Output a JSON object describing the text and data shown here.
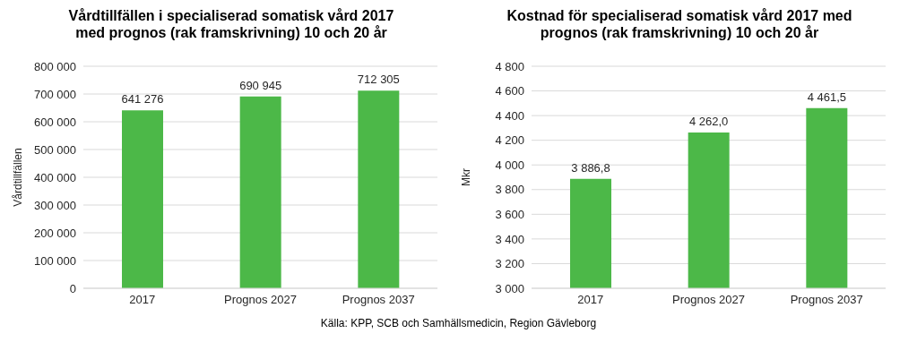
{
  "chart_data": [
    {
      "type": "bar",
      "title": "Vårdtillfällen i specialiserad somatisk vård 2017 med prognos (rak framskrivning) 10 och 20 år",
      "ylabel": "Vårdtillfällen",
      "categories": [
        "2017",
        "Prognos 2027",
        "Prognos 2037"
      ],
      "values": [
        641276,
        690945,
        712305
      ],
      "color": "#4cb848",
      "value_labels": [
        "641 276",
        "690 945",
        "712 305"
      ],
      "ylim": [
        0,
        800000
      ],
      "yticks": [
        {
          "value": 0,
          "label": "0"
        },
        {
          "value": 100000,
          "label": "100 000"
        },
        {
          "value": 200000,
          "label": "200 000"
        },
        {
          "value": 300000,
          "label": "300 000"
        },
        {
          "value": 400000,
          "label": "400 000"
        },
        {
          "value": 500000,
          "label": "500 000"
        },
        {
          "value": 600000,
          "label": "600 000"
        },
        {
          "value": 700000,
          "label": "700 000"
        },
        {
          "value": 800000,
          "label": "800 000"
        }
      ],
      "grid": "y",
      "annotations": [
        "Källa: KPP, SCB och Samhällsmedicin, Region Gävleborg"
      ]
    },
    {
      "type": "bar",
      "title": "Kostnad för specialiserad somatisk vård 2017 med prognos (rak framskrivning) 10 och 20 år",
      "ylabel": "Mkr",
      "categories": [
        "2017",
        "Prognos 2027",
        "Prognos 2037"
      ],
      "values": [
        3886.8,
        4262.0,
        4461.5
      ],
      "color": "#4cb848",
      "value_labels": [
        "3 886,8",
        "4 262,0",
        "4 461,5"
      ],
      "ylim": [
        3000,
        4800
      ],
      "yticks": [
        {
          "value": 3000,
          "label": "3 000"
        },
        {
          "value": 3200,
          "label": "3 200"
        },
        {
          "value": 3400,
          "label": "3 400"
        },
        {
          "value": 3600,
          "label": "3 600"
        },
        {
          "value": 3800,
          "label": "3 800"
        },
        {
          "value": 4000,
          "label": "4 000"
        },
        {
          "value": 4200,
          "label": "4 200"
        },
        {
          "value": 4400,
          "label": "4 400"
        },
        {
          "value": 4600,
          "label": "4 600"
        },
        {
          "value": 4800,
          "label": "4 800"
        }
      ],
      "grid": "y"
    }
  ]
}
